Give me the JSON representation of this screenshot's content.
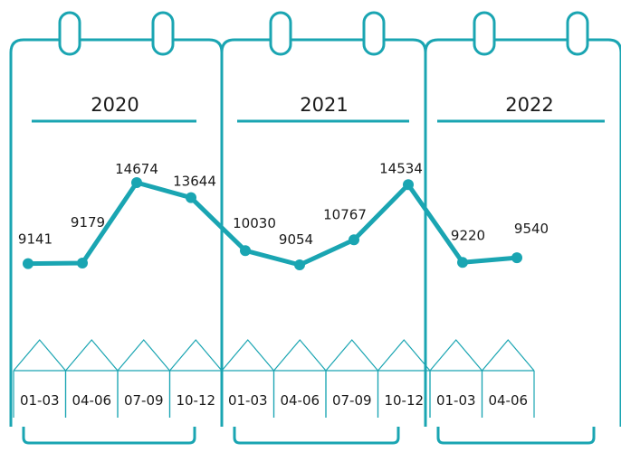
{
  "chart_data": {
    "type": "line",
    "title": "",
    "xlabel": "",
    "ylabel": "",
    "groups": [
      {
        "year": "2020",
        "periods": [
          "01-03",
          "04-06",
          "07-09",
          "10-12"
        ],
        "values": [
          9141,
          9179,
          14674,
          13644
        ]
      },
      {
        "year": "2021",
        "periods": [
          "01-03",
          "04-06",
          "07-09",
          "10-12"
        ],
        "values": [
          10030,
          9054,
          10767,
          14534
        ]
      },
      {
        "year": "2022",
        "periods": [
          "01-03",
          "04-06"
        ],
        "values": [
          9220,
          9540
        ]
      }
    ],
    "line_color": "#1aa5b2",
    "text_color": "#1a1a1a"
  }
}
